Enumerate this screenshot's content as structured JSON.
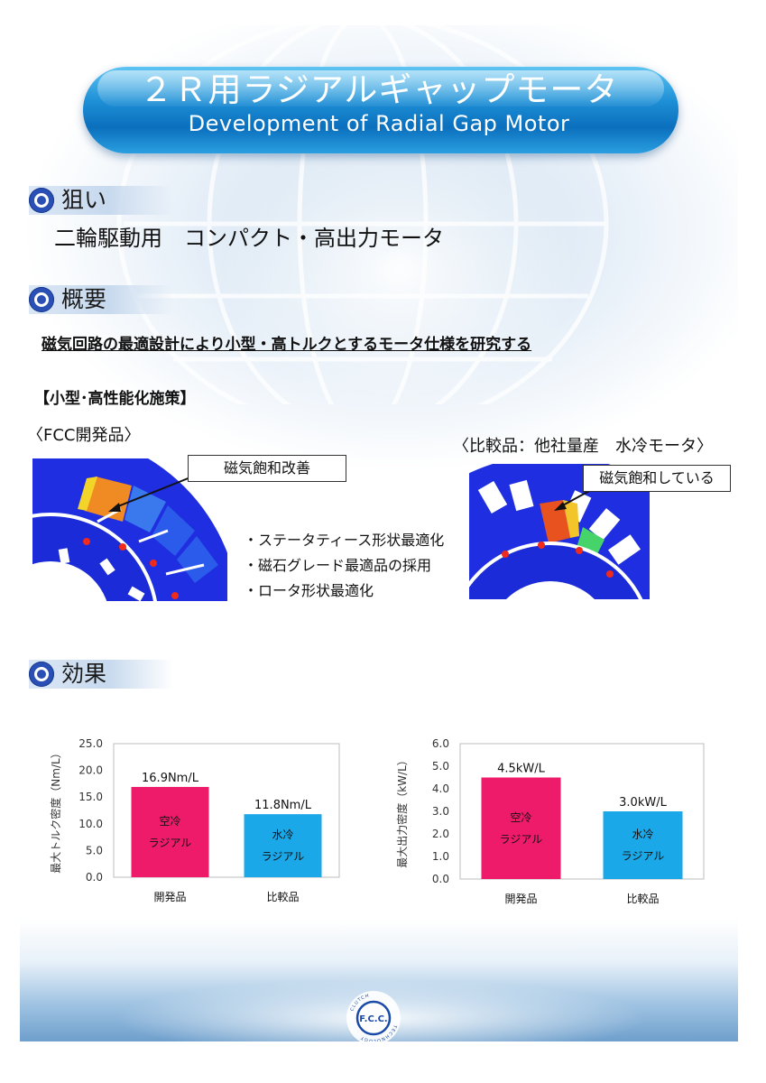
{
  "header": {
    "title_jp": "２Ｒ用ラジアルギャップモータ",
    "title_en": "Development of Radial Gap Motor"
  },
  "sections": {
    "aim": {
      "label": "狙い",
      "text": "二輪駆動用　コンパクト・高出力モータ"
    },
    "overview": {
      "label": "概要",
      "text": "磁気回路の最適設計により小型・高トルクとするモータ仕様を研究する",
      "measures_heading": "【小型･高性能化施策】",
      "fcc_product_label": "〈FCC開発品〉",
      "comparison_label": "〈比較品：他社量産　水冷モータ〉",
      "callout_fcc": "磁気飽和改善",
      "callout_comparison": "磁気飽和している",
      "bullets": [
        "・ステータティース形状最適化",
        "・磁石グレード最適品の採用",
        "・ロータ形状最適化"
      ]
    },
    "effect": {
      "label": "効果"
    }
  },
  "colors": {
    "bar_developed": "#ee1a6a",
    "bar_comparison": "#1aa8e8",
    "section_dot": "#2a50b5",
    "banner": "#0b6fbd"
  },
  "chart_data": [
    {
      "type": "bar",
      "title": "最大トルク密度",
      "ylabel": "最大トルク密度（Nm/L）",
      "categories": [
        "開発品",
        "比較品"
      ],
      "values": [
        16.9,
        11.8
      ],
      "data_labels": [
        "16.9Nm/L",
        "11.8Nm/L"
      ],
      "bar_texts": [
        [
          "空冷",
          "ラジアル"
        ],
        [
          "水冷",
          "ラジアル"
        ]
      ],
      "yticks": [
        "0.0",
        "5.0",
        "10.0",
        "15.0",
        "20.0",
        "25.0"
      ],
      "ylim": [
        0,
        25
      ]
    },
    {
      "type": "bar",
      "title": "最大出力密度",
      "ylabel": "最大出力密度（kW/L）",
      "categories": [
        "開発品",
        "比較品"
      ],
      "values": [
        4.5,
        3.0
      ],
      "data_labels": [
        "4.5kW/L",
        "3.0kW/L"
      ],
      "bar_texts": [
        [
          "空冷",
          "ラジアル"
        ],
        [
          "水冷",
          "ラジアル"
        ]
      ],
      "yticks": [
        "0.0",
        "1.0",
        "2.0",
        "3.0",
        "4.0",
        "5.0",
        "6.0"
      ],
      "ylim": [
        0,
        6
      ]
    }
  ],
  "footer": {
    "logo_text": "F.C.C.",
    "logo_ring_text": "CLUTCH TECHNOLOGY"
  }
}
